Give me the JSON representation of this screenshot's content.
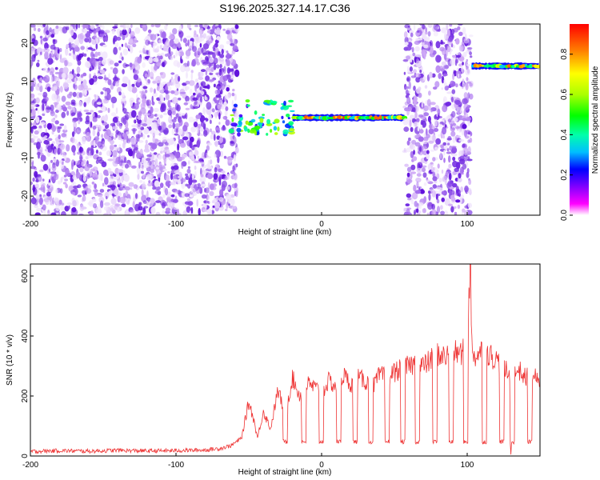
{
  "page_title": "S196.2025.327.14.17.C36",
  "chart_data": [
    {
      "type": "heatmap",
      "title": "S196.2025.327.14.17.C36",
      "xlabel": "Height of straight line (km)",
      "ylabel": "Frequency (Hz)",
      "xlim": [
        -200,
        150
      ],
      "ylim": [
        -25,
        25
      ],
      "x_ticks": [
        -200,
        -100,
        0,
        100
      ],
      "y_ticks": [
        -20,
        -10,
        0,
        10,
        20
      ],
      "colorbar": {
        "label": "Normalized spectral amplitude",
        "range": [
          0,
          0.95
        ],
        "ticks": [
          0.0,
          0.2,
          0.4,
          0.6,
          0.8
        ],
        "tick_labels": [
          "0.0",
          "0.2",
          "0.4",
          "0.6",
          "0.8"
        ],
        "colors": [
          "#ff00ff",
          "#8000ff",
          "#0000ff",
          "#00bfff",
          "#00ffaa",
          "#00ff00",
          "#aaff00",
          "#ffff00",
          "#ff8000",
          "#ff0000"
        ]
      },
      "regions": [
        {
          "name": "noise",
          "x_range": [
            -200,
            -58
          ],
          "freq_range": [
            -25,
            25
          ],
          "amplitude": 0.1
        },
        {
          "name": "noise-dense",
          "x_range": [
            -80,
            -62
          ],
          "freq_range": [
            7,
            18
          ],
          "amplitude": 0.18
        },
        {
          "name": "onset-track",
          "x_range": [
            -62,
            -20
          ],
          "freq_range": [
            -4,
            5
          ],
          "amplitude": 0.45
        },
        {
          "name": "main-track",
          "x_range": [
            -20,
            57
          ],
          "freq_center": 0.5,
          "amplitude": 0.75
        },
        {
          "name": "noise",
          "x_range": [
            57,
            103
          ],
          "freq_range": [
            -25,
            25
          ],
          "amplitude": 0.1
        },
        {
          "name": "upper-track",
          "x_range": [
            103,
            150
          ],
          "freq_center": 14,
          "amplitude": 0.7
        }
      ]
    },
    {
      "type": "line",
      "xlabel": "Height of straight line (km)",
      "ylabel": "SNR (10 * v/v)",
      "xlim": [
        -200,
        150
      ],
      "ylim": [
        0,
        640
      ],
      "x_ticks": [
        -200,
        -100,
        0,
        100
      ],
      "y_ticks": [
        0,
        200,
        400,
        600
      ],
      "series": [
        {
          "name": "SNR",
          "color": "#ee3333",
          "x": [
            -200,
            -180,
            -160,
            -140,
            -120,
            -100,
            -80,
            -70,
            -62,
            -55,
            -50,
            -47,
            -44,
            -40,
            -35,
            -30,
            -25,
            -20,
            -15,
            -10,
            -5,
            0,
            5,
            10,
            15,
            20,
            25,
            30,
            35,
            40,
            45,
            50,
            55,
            60,
            65,
            70,
            75,
            80,
            85,
            90,
            95,
            100,
            102,
            103,
            105,
            110,
            115,
            120,
            125,
            130,
            135,
            140,
            145,
            150
          ],
          "y": [
            15,
            18,
            16,
            19,
            17,
            18,
            20,
            25,
            35,
            60,
            180,
            130,
            60,
            150,
            90,
            220,
            140,
            260,
            200,
            240,
            230,
            210,
            250,
            230,
            270,
            240,
            260,
            250,
            230,
            270,
            260,
            280,
            290,
            300,
            310,
            300,
            320,
            340,
            330,
            350,
            340,
            360,
            640,
            380,
            330,
            350,
            340,
            320,
            300,
            250,
            290,
            260,
            280,
            230
          ]
        }
      ],
      "dips": [
        -25,
        -12,
        0,
        12,
        23,
        34,
        45,
        56,
        66,
        78,
        89,
        99,
        112,
        124,
        131,
        143
      ]
    }
  ]
}
